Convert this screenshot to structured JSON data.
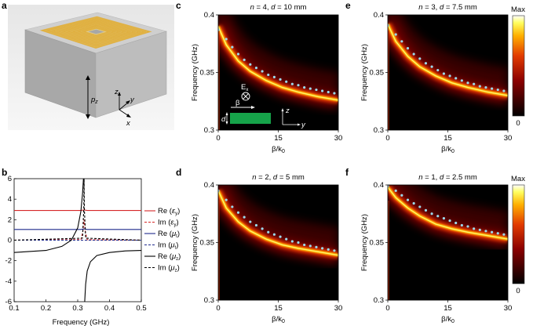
{
  "panels": {
    "a": {
      "label": "a",
      "axes": {
        "z": "z",
        "y": "y",
        "x": "x"
      },
      "height_label_main": "p",
      "height_label_sub": "z"
    },
    "b": {
      "label": "b",
      "xlabel": "Frequency (GHz)",
      "legend": [
        {
          "main": "Re (",
          "sym": "ε",
          "sub": "y",
          "close": ")",
          "color": "#d62728",
          "dash": ""
        },
        {
          "main": "Im (",
          "sym": "ε",
          "sub": "y",
          "close": ")",
          "color": "#d62728",
          "dash": "3,2"
        },
        {
          "main": "Re (",
          "sym": "μ",
          "sub": "t",
          "close": ")",
          "color": "#1f2a8c",
          "dash": ""
        },
        {
          "main": "Im (",
          "sym": "μ",
          "sub": "t",
          "close": ")",
          "color": "#1f2a8c",
          "dash": "3,2"
        },
        {
          "main": "Re (",
          "sym": "μ",
          "sub": "z",
          "close": ")",
          "color": "#000000",
          "dash": ""
        },
        {
          "main": "Im (",
          "sym": "μ",
          "sub": "z",
          "close": ")",
          "color": "#000000",
          "dash": "3,2"
        }
      ]
    },
    "c": {
      "label": "c",
      "title_n": "n",
      "title_n_val": " = 4, ",
      "title_d": "d",
      "title_d_val": " = 10 mm"
    },
    "d": {
      "label": "d",
      "title_n": "n",
      "title_n_val": " = 2, ",
      "title_d": "d",
      "title_d_val": " = 5 mm"
    },
    "e": {
      "label": "e",
      "title_n": "n",
      "title_n_val": " = 3, ",
      "title_d": "d",
      "title_d_val": " = 7.5 mm"
    },
    "f": {
      "label": "f",
      "title_n": "n",
      "title_n_val": " = 1, ",
      "title_d": "d",
      "title_d_val": " = 2.5 mm"
    }
  },
  "heatmap_axes": {
    "ylabel": "Frequency (GHz)",
    "xlabel_main": "β/k",
    "xlabel_sub": "0",
    "xticks": [
      "0",
      "15",
      "30"
    ],
    "yticks": [
      "0.3",
      "0.35",
      "0.4"
    ]
  },
  "inset": {
    "ex_main": "E",
    "ex_sub": "x",
    "beta": "β",
    "d": "d",
    "z": "z",
    "y": "y"
  },
  "colorbar": {
    "max": "Max",
    "min": "0"
  },
  "chart_data": [
    {
      "type": "line",
      "panel": "b",
      "xlabel": "Frequency (GHz)",
      "ylabel": "",
      "xlim": [
        0.1,
        0.5
      ],
      "ylim": [
        -6,
        6
      ],
      "xticks": [
        0.1,
        0.2,
        0.3,
        0.4,
        0.5
      ],
      "yticks": [
        -6,
        -4,
        -2,
        0,
        2,
        4,
        6
      ],
      "series": [
        {
          "name": "Re (εy)",
          "x": [
            0.1,
            0.31,
            0.32,
            0.33,
            0.5
          ],
          "y": [
            2.9,
            2.9,
            2.95,
            2.9,
            2.9
          ]
        },
        {
          "name": "Im (εy)",
          "x": [
            0.1,
            0.31,
            0.316,
            0.32,
            0.324,
            0.33,
            0.5
          ],
          "y": [
            0,
            0.05,
            0.8,
            2.0,
            0.8,
            0.05,
            0
          ]
        },
        {
          "name": "Re (μt)",
          "x": [
            0.1,
            0.31,
            0.32,
            0.33,
            0.5
          ],
          "y": [
            1.05,
            1.05,
            1.1,
            1.05,
            1.05
          ]
        },
        {
          "name": "Im (μt)",
          "x": [
            0.1,
            0.5
          ],
          "y": [
            0,
            0
          ]
        },
        {
          "name": "Re (μz)",
          "x": [
            0.1,
            0.2,
            0.25,
            0.28,
            0.3,
            0.31,
            0.315,
            0.318,
            0.322,
            0.325,
            0.33,
            0.34,
            0.36,
            0.4,
            0.45,
            0.5
          ],
          "y": [
            -1.2,
            -1.0,
            -0.6,
            0.0,
            1.2,
            2.8,
            4.5,
            6,
            -6,
            -4.3,
            -3.0,
            -2.1,
            -1.5,
            -1.2,
            -1.05,
            -1.0
          ]
        },
        {
          "name": "Im (μz)",
          "x": [
            0.1,
            0.315,
            0.319,
            0.32,
            0.321,
            0.325,
            0.5
          ],
          "y": [
            0,
            0.2,
            3,
            6,
            3,
            0.2,
            0
          ]
        }
      ]
    },
    {
      "type": "heatmap",
      "panel": "c",
      "xlim": [
        0,
        30
      ],
      "ylim": [
        0.3,
        0.4
      ],
      "dispersion_curve": {
        "beta_over_k0": [
          0,
          2,
          5,
          8,
          12,
          16,
          20,
          25,
          30
        ],
        "frequency_ghz": [
          0.39,
          0.374,
          0.36,
          0.351,
          0.343,
          0.337,
          0.333,
          0.329,
          0.326
        ]
      },
      "points": {
        "beta_over_k0": [
          0,
          2,
          3.5,
          5,
          6.5,
          8,
          9.5,
          11,
          12.5,
          14,
          15.5,
          17,
          18.5,
          20,
          21.5,
          23,
          24.5,
          26,
          27.5,
          29
        ],
        "frequency_ghz": [
          0.387,
          0.379,
          0.372,
          0.366,
          0.361,
          0.357,
          0.354,
          0.351,
          0.348,
          0.346,
          0.344,
          0.342,
          0.34,
          0.339,
          0.337,
          0.336,
          0.335,
          0.334,
          0.333,
          0.332
        ]
      }
    },
    {
      "type": "heatmap",
      "panel": "d",
      "xlim": [
        0,
        30
      ],
      "ylim": [
        0.3,
        0.4
      ],
      "dispersion_curve": {
        "beta_over_k0": [
          0,
          2,
          5,
          8,
          12,
          16,
          20,
          25,
          30
        ],
        "frequency_ghz": [
          0.395,
          0.38,
          0.368,
          0.36,
          0.353,
          0.348,
          0.345,
          0.342,
          0.339
        ]
      },
      "points": {
        "beta_over_k0": [
          0,
          2,
          3.5,
          5,
          6.5,
          8,
          9.5,
          11,
          12.5,
          14,
          15.5,
          17,
          18.5,
          20,
          21.5,
          23,
          24.5,
          26,
          27.5,
          29
        ],
        "frequency_ghz": [
          0.395,
          0.387,
          0.381,
          0.376,
          0.372,
          0.368,
          0.365,
          0.362,
          0.359,
          0.357,
          0.355,
          0.353,
          0.351,
          0.35,
          0.348,
          0.347,
          0.346,
          0.345,
          0.344,
          0.343
        ]
      }
    },
    {
      "type": "heatmap",
      "panel": "e",
      "xlim": [
        0,
        30
      ],
      "ylim": [
        0.3,
        0.4
      ],
      "dispersion_curve": {
        "beta_over_k0": [
          0,
          2,
          5,
          8,
          12,
          16,
          20,
          25,
          30
        ],
        "frequency_ghz": [
          0.392,
          0.377,
          0.364,
          0.355,
          0.347,
          0.341,
          0.337,
          0.333,
          0.33
        ]
      },
      "points": {
        "beta_over_k0": [
          0,
          2,
          3.5,
          5,
          6.5,
          8,
          9.5,
          11,
          12.5,
          14,
          15.5,
          17,
          18.5,
          20,
          21.5,
          23,
          24.5,
          26,
          27.5,
          29
        ],
        "frequency_ghz": [
          0.391,
          0.383,
          0.377,
          0.371,
          0.366,
          0.362,
          0.358,
          0.355,
          0.352,
          0.349,
          0.347,
          0.345,
          0.343,
          0.341,
          0.34,
          0.338,
          0.337,
          0.336,
          0.335,
          0.334
        ]
      }
    },
    {
      "type": "heatmap",
      "panel": "f",
      "xlim": [
        0,
        30
      ],
      "ylim": [
        0.3,
        0.4
      ],
      "dispersion_curve": {
        "beta_over_k0": [
          0,
          2,
          5,
          8,
          12,
          16,
          20,
          25,
          30
        ],
        "frequency_ghz": [
          0.398,
          0.389,
          0.38,
          0.373,
          0.366,
          0.362,
          0.359,
          0.356,
          0.353
        ]
      },
      "points": {
        "beta_over_k0": [
          0,
          2,
          3.5,
          5,
          6.5,
          8,
          9.5,
          11,
          12.5,
          14,
          15.5,
          17,
          18.5,
          20,
          21.5,
          23,
          24.5,
          26,
          27.5,
          29
        ],
        "frequency_ghz": [
          0.399,
          0.395,
          0.391,
          0.387,
          0.384,
          0.381,
          0.378,
          0.375,
          0.373,
          0.371,
          0.369,
          0.367,
          0.365,
          0.364,
          0.362,
          0.361,
          0.36,
          0.359,
          0.358,
          0.357
        ]
      }
    }
  ]
}
